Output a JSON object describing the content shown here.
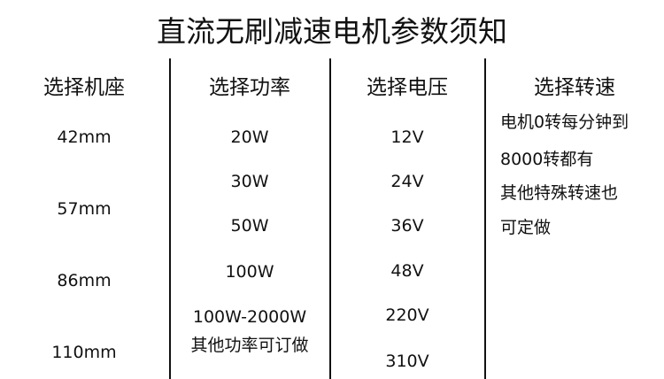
{
  "title": "直流无刷减速电机参数须知",
  "columns": [
    {
      "header": "选择机座",
      "items": [
        "42mm",
        "57mm",
        "86mm",
        "110mm"
      ]
    },
    {
      "header": "选择功率",
      "items": [
        "20W",
        "30W",
        "50W",
        "100W",
        "100W-2000W",
        "其他功率可订做"
      ]
    },
    {
      "header": "选择电压",
      "items": [
        "12V",
        "24V",
        "36V",
        "48V",
        "220V",
        "310V"
      ]
    },
    {
      "header": "选择转速",
      "items": [
        "电机0转每分钟到",
        "8000转都有",
        "其他特殊转速也",
        "可定做"
      ]
    }
  ]
}
